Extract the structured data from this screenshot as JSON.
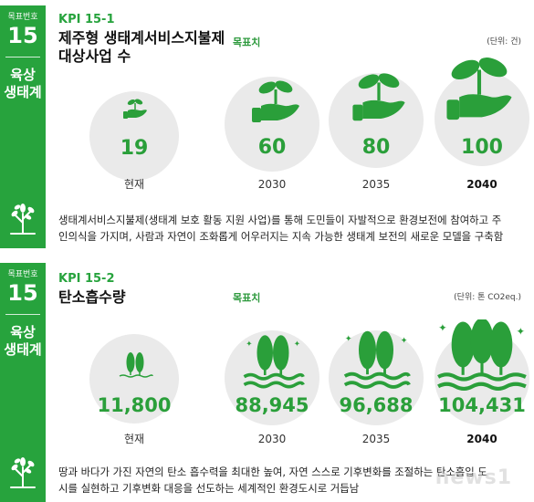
{
  "sections": [
    {
      "sidebar": {
        "label": "목표번호",
        "number": "15",
        "category_line1": "육상",
        "category_line2": "생태계"
      },
      "kpi_id": "KPI 15-1",
      "title_line1": "제주형 생태계서비스지불제",
      "title_line2": "대상사업 수",
      "target_label": "목표치",
      "unit": "(단위: 건)",
      "items": [
        {
          "value": "19",
          "year": "현재"
        },
        {
          "value": "60",
          "year": "2030"
        },
        {
          "value": "80",
          "year": "2035"
        },
        {
          "value": "100",
          "year": "2040"
        }
      ],
      "description_line1": "생태계서비스지불제(생태계 보호 활동 지원 사업)를 통해 도민들이 자발적으로 환경보전에 참여하고 주",
      "description_line2": "인의식을 가지며, 사람과 자연이 조화롭게 어우러지는 지속 가능한 생태계 보전의 새로운 모델을 구축함"
    },
    {
      "sidebar": {
        "label": "목표번호",
        "number": "15",
        "category_line1": "육상",
        "category_line2": "생태계"
      },
      "kpi_id": "KPI 15-2",
      "title_line1": "탄소흡수량",
      "target_label": "목표치",
      "unit": "(단위: 톤 CO2eq.)",
      "items": [
        {
          "value": "11,800",
          "year": "현재"
        },
        {
          "value": "88,945",
          "year": "2030"
        },
        {
          "value": "96,688",
          "year": "2035"
        },
        {
          "value": "104,431",
          "year": "2040"
        }
      ],
      "description_line1": "땅과 바다가 가진 자연의 탄소 흡수력을 최대한 높여, 자연 스스로 기후변화를 조절하는 탄소흡입 도",
      "description_line2": "시를 실현하고 기후변화 대응을 선도하는 세계적인 환경도시로 거듭남"
    }
  ],
  "icons": [
    "plant-in-hand-icon",
    "tree-icon",
    "forest-on-waves-icon"
  ],
  "colors": {
    "brand_green": "#27a33d",
    "value_green": "#2a9f3a",
    "circle_gray": "#eaeaea"
  },
  "watermark": "news1"
}
